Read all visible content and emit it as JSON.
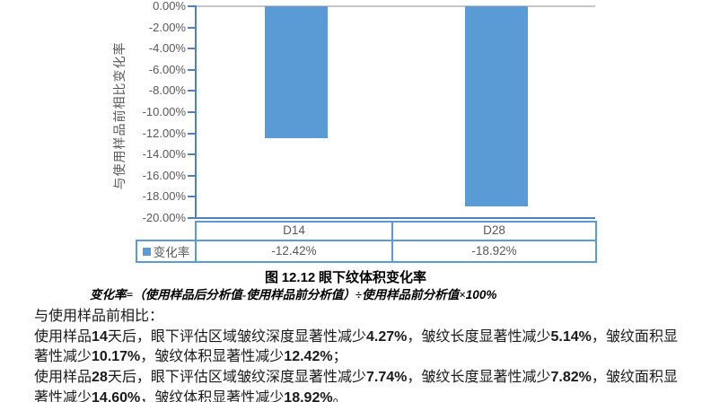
{
  "chart_data": {
    "type": "bar",
    "categories": [
      "D14",
      "D28"
    ],
    "series": [
      {
        "name": "变化率",
        "values": [
          -12.42,
          -18.92
        ]
      }
    ],
    "value_labels": [
      "-12.42%",
      "-18.92%"
    ],
    "title": "图 12.12 眼下纹体积变化率",
    "xlabel": "",
    "ylabel": "与使用样品前相比变化率",
    "ylim": [
      -20,
      0
    ],
    "ytick_step": 2,
    "ytick_labels": [
      "0.00%",
      "-2.00%",
      "-4.00%",
      "-6.00%",
      "-8.00%",
      "-10.00%",
      "-12.00%",
      "-14.00%",
      "-16.00%",
      "-18.00%",
      "-20.00%"
    ],
    "grid": "zero-line-only",
    "legend_position": "data-table-left",
    "bar_color": "#5B9BD5"
  },
  "table": {
    "columns": [
      "D14",
      "D28"
    ],
    "rows": [
      {
        "label": "变化率",
        "values": [
          "-12.42%",
          "-18.92%"
        ]
      }
    ]
  },
  "caption": "图 12.12 眼下纹体积变化率",
  "formula": "变化率=（使用样品后分析值-使用样品前分析值）÷使用样品前分析值×100%",
  "paragraph": {
    "intro": "与使用样品前相比：",
    "lines": [
      "使用样品14天后，眼下评估区域皱纹深度显著性减少4.27%，皱纹长度显著性减少5.14%，皱纹面积显",
      "著性减少10.17%，皱纹体积显著性减少12.42%；",
      "使用样品28天后，眼下评估区域皱纹深度显著性减少7.74%，皱纹长度显著性减少7.82%，皱纹面积显",
      "著性减少14.60%，皱纹体积显著性减少18.92%。"
    ]
  },
  "colors": {
    "bar": "#5B9BD5",
    "axis_line": "#4E81BD",
    "zero_gridline": "#C6C6C6",
    "table_border": "#5B9BD5",
    "chart_text": "#595959",
    "body_text": "#1A1A1A"
  }
}
